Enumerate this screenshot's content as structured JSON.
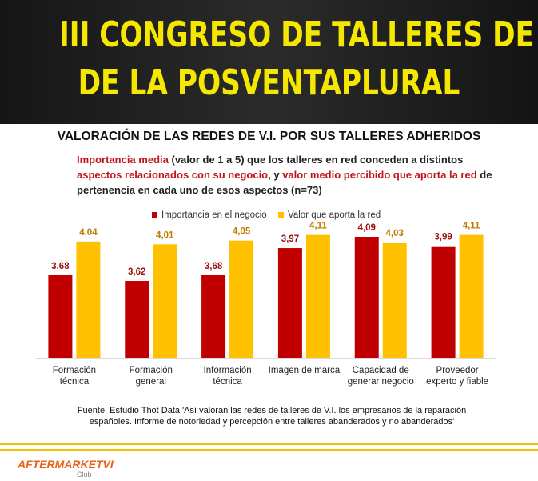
{
  "header": {
    "lines": [
      "III CONGRESO DE TALLERES DE V.I.",
      "DE LA POSVENTAPLURAL"
    ]
  },
  "chart_data": {
    "type": "bar",
    "title": "VALORACIÓN DE LAS REDES DE V.I. POR SUS TALLERES ADHERIDOS",
    "subtitle": [
      {
        "text": "Importancia media",
        "highlight": true
      },
      {
        "text": " (valor de 1 a 5) que los talleres en red conceden a distintos ",
        "highlight": false
      },
      {
        "text": "aspectos relacionados con su negocio",
        "highlight": true
      },
      {
        "text": ", y ",
        "highlight": false
      },
      {
        "text": "valor medio percibido que aporta la red",
        "highlight": true
      },
      {
        "text": " de pertenencia en cada uno de esos aspectos (n=73)",
        "highlight": false
      }
    ],
    "highlight_color": "#c0141b",
    "categories": [
      "Formación técnica",
      "Formación general",
      "Información técnica",
      "Imagen de marca",
      "Capacidad de generar negocio",
      "Proveedor experto y fiable"
    ],
    "series": [
      {
        "name": "Importancia en el negocio",
        "color": "#c00000",
        "values": [
          3.68,
          3.62,
          3.68,
          3.97,
          4.09,
          3.99
        ],
        "value_labels": [
          "3,68",
          "3,62",
          "3,68",
          "3,97",
          "4,09",
          "3,99"
        ]
      },
      {
        "name": "Valor que aporta la red",
        "color": "#ffc000",
        "values": [
          4.04,
          4.01,
          4.05,
          4.11,
          4.03,
          4.11
        ],
        "value_labels": [
          "4,04",
          "4,01",
          "4,05",
          "4,11",
          "4,03",
          "4,11"
        ]
      }
    ],
    "ylim": [
      2.8,
      4.5
    ]
  },
  "source": "Fuente: Estudio Thot Data 'Así valoran las redes de talleres de V.I. los empresarios de la reparación españoles. Informe de notoriedad y percepción entre talleres abanderados y no abanderados'",
  "logo": {
    "name": "AFTERMARKETVI",
    "sub": "Club"
  }
}
